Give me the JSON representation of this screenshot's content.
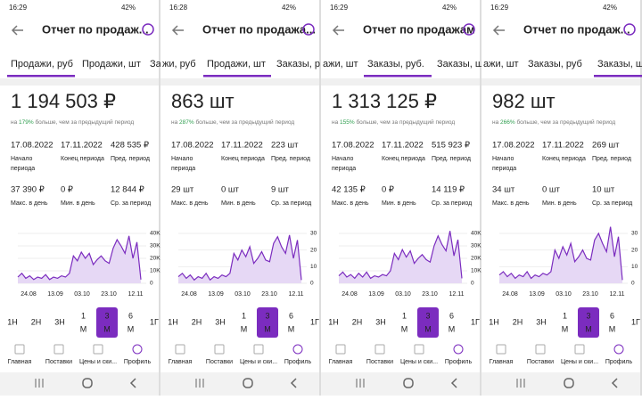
{
  "panels": [
    {
      "status": {
        "time": "16:29",
        "battery": "42%"
      },
      "title": "Отчет по продаж...",
      "tabs": [
        "Продажи, руб",
        "Продажи, шт",
        "Заказ"
      ],
      "active_tab": 0,
      "value": "1 194 503 ₽",
      "comparison": {
        "prefix": "на ",
        "percent": "179%",
        "suffix": " больше, чем за предыдущий период"
      },
      "stats": [
        [
          "17.08.2022",
          "Начало",
          "периода"
        ],
        [
          "17.11.2022",
          "Конец периода",
          ""
        ],
        [
          "428 535 ₽",
          "Пред. период",
          ""
        ],
        [
          "37 390 ₽",
          "Макс. в день",
          ""
        ],
        [
          "0 ₽",
          "Мин. в день",
          ""
        ],
        [
          "12 844 ₽",
          "Ср. за период",
          ""
        ]
      ],
      "chart": {
        "ylim": [
          0,
          40000
        ],
        "yticks": [
          {
            "value": 40000,
            "label": "40K"
          },
          {
            "value": 30000,
            "label": "30K"
          },
          {
            "value": 20000,
            "label": "20K"
          },
          {
            "value": 10000,
            "label": "10K"
          },
          0
        ],
        "xticks": [
          "24.08",
          "13.09",
          "03.10",
          "23.10",
          "12.11"
        ],
        "values": [
          5000,
          8000,
          4000,
          6000,
          3000,
          5000,
          4000,
          7000,
          3000,
          5000,
          4000,
          6000,
          5000,
          8000,
          22000,
          18000,
          25000,
          20000,
          24000,
          15000,
          19000,
          22000,
          18000,
          16000,
          28000,
          35000,
          30000,
          24000,
          38000,
          20000,
          33000,
          3000
        ]
      },
      "periods": [
        "1Н",
        "2Н",
        "3Н",
        [
          "1",
          "М"
        ],
        [
          "3",
          "М"
        ],
        [
          "6",
          "М"
        ],
        "1Г"
      ],
      "active_period": 4,
      "nav": [
        "Главная",
        "Поставки",
        "Цены и ски...",
        "Профиль"
      ]
    },
    {
      "status": {
        "time": "16:28",
        "battery": "42%"
      },
      "title": "Отчет по продажа...",
      "tabs": [
        "жи, руб",
        "Продажи, шт",
        "Заказы, р"
      ],
      "active_tab": 1,
      "value": "863 шт",
      "comparison": {
        "prefix": "на ",
        "percent": "287%",
        "suffix": " больше, чем за предыдущий период"
      },
      "stats": [
        [
          "17.08.2022",
          "Начало",
          "периода"
        ],
        [
          "17.11.2022",
          "Конец периода",
          ""
        ],
        [
          "223 шт",
          "Пред. период",
          ""
        ],
        [
          "29 шт",
          "Макс. в день",
          ""
        ],
        [
          "0 шт",
          "Мин. в день",
          ""
        ],
        [
          "9 шт",
          "Ср. за период",
          ""
        ]
      ],
      "chart": {
        "ylim": [
          0,
          30
        ],
        "yticks": [
          30,
          20,
          10,
          0
        ],
        "xticks": [
          "24.08",
          "13.09",
          "03.10",
          "23.10",
          "12.11"
        ],
        "values": [
          4,
          6,
          3,
          5,
          2,
          4,
          3,
          6,
          2,
          4,
          3,
          5,
          4,
          6,
          18,
          14,
          20,
          16,
          22,
          12,
          15,
          19,
          14,
          13,
          24,
          28,
          22,
          18,
          29,
          15,
          26,
          2
        ]
      },
      "periods": [
        "1Н",
        "2Н",
        "3Н",
        [
          "1",
          "М"
        ],
        [
          "3",
          "М"
        ],
        [
          "6",
          "М"
        ],
        "1Г"
      ],
      "active_period": 4,
      "nav": [
        "Главная",
        "Поставки",
        "Цены и ски...",
        "Профиль"
      ]
    },
    {
      "status": {
        "time": "16:29",
        "battery": "42%"
      },
      "title": "Отчет по продажам",
      "tabs": [
        "ажи, шт",
        "Заказы, руб.",
        "Заказы, ш"
      ],
      "active_tab": 1,
      "value": "1 313 125 ₽",
      "comparison": {
        "prefix": "на ",
        "percent": "155%",
        "suffix": " больше, чем за предыдущий период"
      },
      "stats": [
        [
          "17.08.2022",
          "Начало",
          "периода"
        ],
        [
          "17.11.2022",
          "Конец периода",
          ""
        ],
        [
          "515 923 ₽",
          "Пред. период",
          ""
        ],
        [
          "42 135 ₽",
          "Макс. в день",
          ""
        ],
        [
          "0 ₽",
          "Мин. в день",
          ""
        ],
        [
          "14 119 ₽",
          "Ср. за период",
          ""
        ]
      ],
      "chart": {
        "ylim": [
          0,
          40000
        ],
        "yticks": [
          {
            "value": 40000,
            "label": "40K"
          },
          {
            "value": 30000,
            "label": "30K"
          },
          {
            "value": 20000,
            "label": "20K"
          },
          {
            "value": 10000,
            "label": "10K"
          },
          0
        ],
        "xticks": [
          "24.08",
          "13.09",
          "03.10",
          "23.10",
          "12.11"
        ],
        "values": [
          6000,
          9000,
          5000,
          7000,
          4000,
          8000,
          5000,
          9000,
          4000,
          6000,
          5000,
          7000,
          6000,
          10000,
          24000,
          19000,
          27000,
          21000,
          26000,
          16000,
          20000,
          23000,
          19000,
          17000,
          30000,
          38000,
          31000,
          26000,
          42000,
          22000,
          35000,
          4000
        ]
      },
      "periods": [
        "1Н",
        "2Н",
        "3Н",
        [
          "1",
          "М"
        ],
        [
          "3",
          "М"
        ],
        [
          "6",
          "М"
        ],
        "1Г"
      ],
      "active_period": 4,
      "nav": [
        "Главная",
        "Поставки",
        "Цены и ски...",
        "Профиль"
      ]
    },
    {
      "status": {
        "time": "16:29",
        "battery": "42%"
      },
      "title": "Отчет по продаж...",
      "tabs": [
        "ажи, шт",
        "Заказы, руб",
        "Заказы, шт"
      ],
      "active_tab": 2,
      "value": "982 шт",
      "comparison": {
        "prefix": "на ",
        "percent": "266%",
        "suffix": " больше, чем за предыдущий период"
      },
      "stats": [
        [
          "17.08.2022",
          "Начало",
          "периода"
        ],
        [
          "17.11.2022",
          "Конец периода",
          ""
        ],
        [
          "269 шт",
          "Пред. период",
          ""
        ],
        [
          "34 шт",
          "Макс. в день",
          ""
        ],
        [
          "0 шт",
          "Мин. в день",
          ""
        ],
        [
          "10 шт",
          "Ср. за период",
          ""
        ]
      ],
      "chart": {
        "ylim": [
          0,
          30
        ],
        "yticks": [
          30,
          20,
          10,
          0
        ],
        "xticks": [
          "24.08",
          "13.09",
          "03.10",
          "23.10",
          "12.11"
        ],
        "values": [
          5,
          7,
          4,
          6,
          3,
          5,
          4,
          7,
          3,
          5,
          4,
          6,
          5,
          7,
          20,
          15,
          22,
          17,
          24,
          13,
          16,
          20,
          15,
          14,
          26,
          30,
          24,
          19,
          34,
          16,
          28,
          2
        ]
      },
      "periods": [
        "1Н",
        "2Н",
        "3Н",
        [
          "1",
          "М"
        ],
        [
          "3",
          "М"
        ],
        [
          "6",
          "М"
        ],
        "1Г"
      ],
      "active_period": 4,
      "nav": [
        "Главная",
        "Поставки",
        "Цены и ски...",
        "Профиль"
      ]
    }
  ]
}
